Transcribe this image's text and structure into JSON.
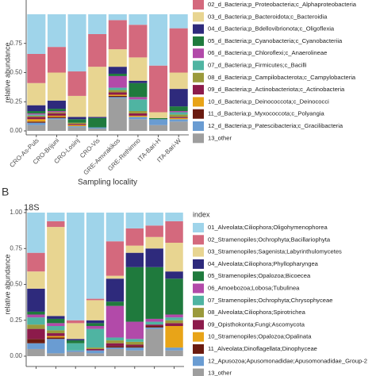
{
  "chart_data": [
    {
      "type": "bar",
      "stacked": true,
      "ylabel": "relative abundance",
      "xlabel": "Sampling locality",
      "categories": [
        "CRO-As-Puls",
        "CRO-Brijuni",
        "CRO-Losinj",
        "CRO-Vis",
        "GRE-Amvrakikos",
        "GRE-Rethimno",
        "ITA-Bari-H",
        "ITA-Bari-W"
      ],
      "ylim": [
        0,
        1
      ],
      "yticks": [
        {
          "value": 0,
          "label": "0.00"
        },
        {
          "value": 0.25,
          "label": "0.25"
        },
        {
          "value": 0.5,
          "label": "0.50"
        },
        {
          "value": 0.75,
          "label": "0.75"
        }
      ],
      "series": [
        {
          "name": null,
          "color": "#9fd4ea",
          "values": [
            0.34,
            0.28,
            0.49,
            0.17,
            0.05,
            0.09,
            0.44,
            0.12
          ]
        },
        {
          "name": "02_d_Bacteria;p_Proteobacteria;c_Alphaproteobacteria",
          "color": "#d4697d",
          "values": [
            0.25,
            0.22,
            0.21,
            0.28,
            0.25,
            0.28,
            0.4,
            0.38
          ]
        },
        {
          "name": "03_d_Bacteria;p_Bacteroidota;c_Bacteroidia",
          "color": "#e8d591",
          "values": [
            0.19,
            0.24,
            0.18,
            0.43,
            0.15,
            0.2,
            0.05,
            0.14
          ]
        },
        {
          "name": "04_d_Bacteria;p_Bdellovibrionota;c_Oligoflexia",
          "color": "#2e2a7c",
          "values": [
            0.05,
            0.07,
            0.02,
            0.01,
            0.06,
            0.02,
            0,
            0.15
          ]
        },
        {
          "name": "05_d_Bacteria;p_Cyanobacteria;c_Cyanobacteriia",
          "color": "#1f7a3d",
          "values": [
            0.02,
            0.02,
            0.03,
            0.08,
            0.02,
            0.12,
            0.01,
            0.04
          ]
        },
        {
          "name": "06_d_Bacteria;p_Chloroflexi;c_Anaerolineae",
          "color": "#b24aa9",
          "values": [
            0.01,
            0.01,
            0,
            0,
            0.1,
            0.02,
            0,
            0.01
          ]
        },
        {
          "name": "07_d_Bacteria;p_Firmicutes;c_Bacilli",
          "color": "#4fb4a2",
          "values": [
            0.01,
            0,
            0,
            0,
            0.02,
            0.1,
            0,
            0.02
          ]
        },
        {
          "name": "08_d_Bacteria;p_Campilobacterota;c_Campylobacteria",
          "color": "#9b9a3c",
          "values": [
            0.01,
            0.01,
            0.01,
            0,
            0.02,
            0.02,
            0,
            0.02
          ]
        },
        {
          "name": "09_d_Bacteria;p_Actinobacteriota;c_Actinobacteria",
          "color": "#8c1b4b",
          "values": [
            0.02,
            0.02,
            0.01,
            0,
            0.02,
            0.02,
            0,
            0.01
          ]
        },
        {
          "name": "10_d_Bacteria;p_Deinococcota;c_Deinococci",
          "color": "#e8a418",
          "values": [
            0.02,
            0.01,
            0.01,
            0,
            0.01,
            0.01,
            0,
            0.01
          ]
        },
        {
          "name": "11_d_Bacteria;p_Myxococcota;c_Polyangia",
          "color": "#6b1b10",
          "values": [
            0.01,
            0.01,
            0,
            0,
            0.01,
            0,
            0,
            0
          ]
        },
        {
          "name": "12_d_Bacteria;p_Patescibacteria;c_Gracilibacteria",
          "color": "#6a9cd2",
          "values": [
            0.02,
            0.01,
            0.01,
            0.01,
            0.01,
            0.02,
            0.05,
            0.02
          ]
        },
        {
          "name": "13_other",
          "color": "#9e9e9e",
          "values": [
            0.05,
            0.1,
            0.03,
            0.02,
            0.28,
            0.1,
            0.05,
            0.08
          ]
        }
      ]
    },
    {
      "type": "bar",
      "stacked": true,
      "panel_label": "B",
      "title": "18S",
      "ylabel": "relative abundance",
      "legend_title": "index",
      "categories": [
        null,
        null,
        null,
        null,
        null,
        null,
        null,
        null
      ],
      "ylim": [
        0,
        1
      ],
      "yticks": [
        {
          "value": 0,
          "label": "0.00"
        },
        {
          "value": 0.25,
          "label": "0.25"
        },
        {
          "value": 0.5,
          "label": "0.50"
        },
        {
          "value": 0.75,
          "label": "0.75"
        },
        {
          "value": 1,
          "label": "1.00"
        }
      ],
      "series": [
        {
          "name": "01_Alveolata;Ciliophora;Oligohymenophorea",
          "color": "#9fd4ea",
          "values": [
            0.28,
            0.06,
            0.75,
            0.6,
            0.2,
            0.11,
            0.09,
            0.06
          ]
        },
        {
          "name": "02_Stramenopiles;Ochrophyta;Bacillariophyta",
          "color": "#d4697d",
          "values": [
            0.13,
            0.04,
            0.02,
            0.01,
            0.24,
            0.12,
            0.08,
            0.15
          ]
        },
        {
          "name": "03_Stramenopiles;Sagenista;Labyrinthulomycetes",
          "color": "#e8d591",
          "values": [
            0.12,
            0.62,
            0.11,
            0.14,
            0.02,
            0.05,
            0.08,
            0.2
          ]
        },
        {
          "name": "04_Alveolata;Ciliophora;Phyllopharyngea",
          "color": "#2e2a7c",
          "values": [
            0.16,
            0.02,
            0.01,
            0.02,
            0.16,
            0.1,
            0.13,
            0.05
          ]
        },
        {
          "name": "05_Stramenopiles;Opalozoa;Bicoecea",
          "color": "#1f7a3d",
          "values": [
            0.02,
            0.03,
            0.02,
            0.02,
            0.03,
            0.38,
            0.36,
            0.25
          ]
        },
        {
          "name": "06_Amoebozoa;Lobosa;Tubulinea",
          "color": "#b24aa9",
          "values": [
            0.02,
            0.02,
            0,
            0.02,
            0.22,
            0.12,
            0.02,
            0.02
          ]
        },
        {
          "name": "07_Stramenopiles;Ochrophyta;Chrysophyceae",
          "color": "#4fb4a2",
          "values": [
            0.05,
            0.03,
            0.05,
            0.13,
            0.02,
            0.02,
            0.02,
            0.02
          ]
        },
        {
          "name": "08_Alveolata;Ciliophora;Spirotrichea",
          "color": "#9b9a3c",
          "values": [
            0.03,
            0.02,
            0,
            0.01,
            0.02,
            0.02,
            0,
            0.02
          ]
        },
        {
          "name": "09_Opisthokonta;Fungi;Ascomycota",
          "color": "#8c1b4b",
          "values": [
            0.07,
            0.02,
            0,
            0.01,
            0.02,
            0.01,
            0.01,
            0.02
          ]
        },
        {
          "name": "10_Stramenopiles;Opalozoa;Opalinata",
          "color": "#e8a418",
          "values": [
            0,
            0.01,
            0,
            0,
            0,
            0,
            0,
            0.15
          ]
        },
        {
          "name": "11_Alveolata;Dinoflagellata;Dinophyceae",
          "color": "#6b1b10",
          "values": [
            0.03,
            0.01,
            0,
            0,
            0.01,
            0.01,
            0.01,
            0
          ]
        },
        {
          "name": "12_Apusozoa;Apusomonadidae;Apusomonadidae_Group-2",
          "color": "#6a9cd2",
          "values": [
            0.04,
            0.1,
            0.01,
            0.02,
            0.01,
            0.02,
            0.01,
            0.02
          ]
        },
        {
          "name": "13_other",
          "color": "#9e9e9e",
          "values": [
            0.05,
            0.02,
            0.03,
            0.02,
            0.05,
            0.04,
            0.19,
            0.04
          ]
        }
      ]
    }
  ]
}
